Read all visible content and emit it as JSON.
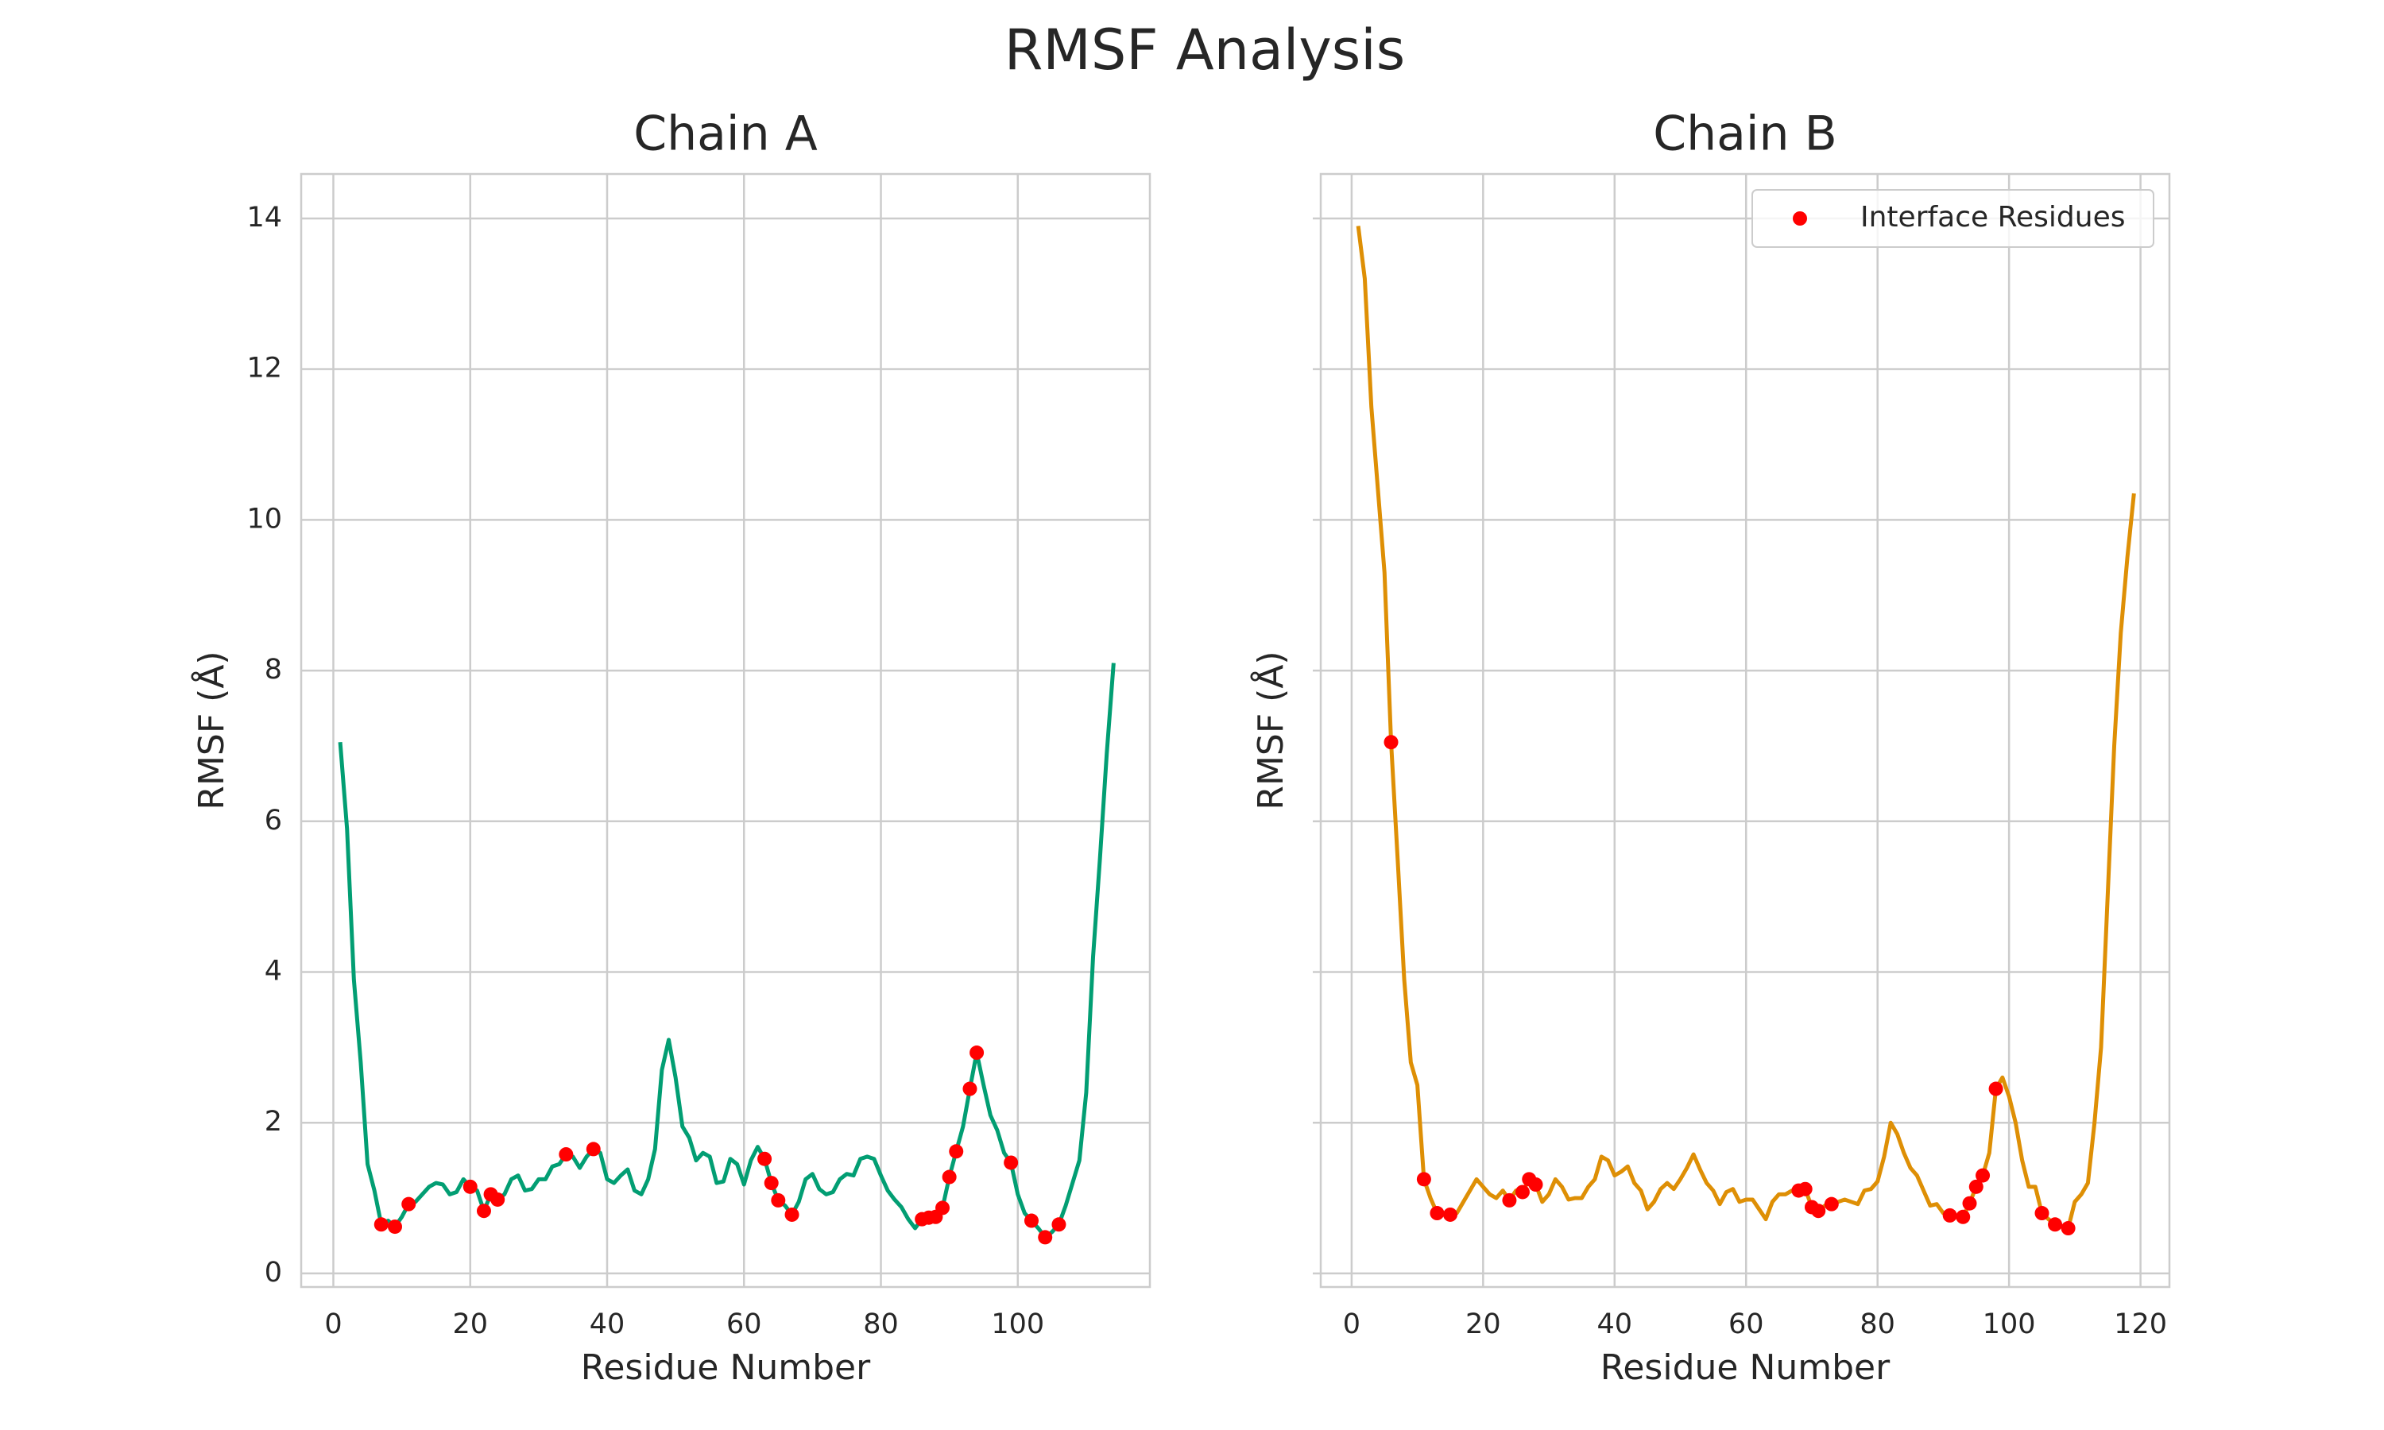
{
  "title": "RMSF Analysis",
  "chart_data": [
    {
      "type": "line",
      "title": "Chain A",
      "x_label": "Residue Number",
      "y_label": "RMSF (Å)",
      "xlim": [
        -4.7,
        119.3
      ],
      "ylim": [
        -0.18,
        14.59
      ],
      "xticks": [
        0,
        20,
        40,
        60,
        80,
        100
      ],
      "yticks": [
        0,
        2,
        4,
        6,
        8,
        10,
        12,
        14
      ],
      "grid": true,
      "show_ytick_labels": true,
      "x": [
        1,
        2,
        3,
        4,
        5,
        6,
        7,
        8,
        9,
        10,
        11,
        12,
        13,
        14,
        15,
        16,
        17,
        18,
        19,
        20,
        21,
        22,
        23,
        24,
        25,
        26,
        27,
        28,
        29,
        30,
        31,
        32,
        33,
        34,
        35,
        36,
        37,
        38,
        39,
        40,
        41,
        42,
        43,
        44,
        45,
        46,
        47,
        48,
        49,
        50,
        51,
        52,
        53,
        54,
        55,
        56,
        57,
        58,
        59,
        60,
        61,
        62,
        63,
        64,
        65,
        66,
        67,
        68,
        69,
        70,
        71,
        72,
        73,
        74,
        75,
        76,
        77,
        78,
        79,
        80,
        81,
        82,
        83,
        84,
        85,
        86,
        87,
        88,
        89,
        90,
        91,
        92,
        93,
        94,
        95,
        96,
        97,
        98,
        99,
        100,
        101,
        102,
        103,
        104,
        105,
        106,
        107,
        108,
        109,
        110,
        111,
        112,
        113,
        114
      ],
      "series": [
        {
          "color": "#029e73",
          "values": [
            7.05,
            5.9,
            3.9,
            2.8,
            1.45,
            1.1,
            0.65,
            0.7,
            0.62,
            0.75,
            0.92,
            0.95,
            1.05,
            1.15,
            1.2,
            1.18,
            1.05,
            1.08,
            1.25,
            1.15,
            1.1,
            0.83,
            1.05,
            0.98,
            1.05,
            1.25,
            1.3,
            1.1,
            1.12,
            1.25,
            1.25,
            1.42,
            1.45,
            1.58,
            1.55,
            1.4,
            1.55,
            1.65,
            1.6,
            1.25,
            1.2,
            1.3,
            1.38,
            1.1,
            1.05,
            1.25,
            1.65,
            2.7,
            3.1,
            2.6,
            1.95,
            1.8,
            1.5,
            1.6,
            1.55,
            1.2,
            1.22,
            1.52,
            1.45,
            1.18,
            1.5,
            1.68,
            1.52,
            1.2,
            0.97,
            0.9,
            0.78,
            0.95,
            1.25,
            1.32,
            1.12,
            1.05,
            1.08,
            1.25,
            1.32,
            1.3,
            1.52,
            1.55,
            1.52,
            1.3,
            1.1,
            0.98,
            0.88,
            0.72,
            0.6,
            0.72,
            0.74,
            0.75,
            0.87,
            1.28,
            1.62,
            1.95,
            2.45,
            2.93,
            2.5,
            2.1,
            1.9,
            1.6,
            1.47,
            1.05,
            0.8,
            0.7,
            0.6,
            0.48,
            0.55,
            0.65,
            0.9,
            1.2,
            1.5,
            2.4,
            4.2,
            5.5,
            6.9,
            8.1
          ]
        }
      ],
      "points": {
        "color": "red",
        "x": [
          7,
          9,
          11,
          20,
          22,
          23,
          24,
          34,
          38,
          63,
          64,
          65,
          67,
          86,
          87,
          88,
          89,
          90,
          91,
          93,
          94,
          99,
          102,
          104,
          106
        ],
        "values": [
          0.65,
          0.62,
          0.92,
          1.15,
          0.83,
          1.05,
          0.98,
          1.58,
          1.65,
          1.52,
          1.2,
          0.97,
          0.78,
          0.72,
          0.74,
          0.75,
          0.87,
          1.28,
          1.62,
          2.45,
          2.93,
          1.47,
          0.7,
          0.48,
          0.65
        ]
      }
    },
    {
      "type": "line",
      "title": "Chain B",
      "x_label": "Residue Number",
      "y_label": "RMSF (Å)",
      "xlim": [
        -4.7,
        124.4
      ],
      "ylim": [
        -0.18,
        14.59
      ],
      "xticks": [
        0,
        20,
        40,
        60,
        80,
        100,
        120
      ],
      "yticks": [
        0,
        2,
        4,
        6,
        8,
        10,
        12,
        14
      ],
      "grid": true,
      "show_ytick_labels": false,
      "legend": "upper right",
      "x": [
        1,
        2,
        3,
        4,
        5,
        6,
        7,
        8,
        9,
        10,
        11,
        12,
        13,
        14,
        15,
        16,
        17,
        18,
        19,
        20,
        21,
        22,
        23,
        24,
        25,
        26,
        27,
        28,
        29,
        30,
        31,
        32,
        33,
        34,
        35,
        36,
        37,
        38,
        39,
        40,
        41,
        42,
        43,
        44,
        45,
        46,
        47,
        48,
        49,
        50,
        51,
        52,
        53,
        54,
        55,
        56,
        57,
        58,
        59,
        60,
        61,
        62,
        63,
        64,
        65,
        66,
        67,
        68,
        69,
        70,
        71,
        72,
        73,
        74,
        75,
        76,
        77,
        78,
        79,
        80,
        81,
        82,
        83,
        84,
        85,
        86,
        87,
        88,
        89,
        90,
        91,
        92,
        93,
        94,
        95,
        96,
        97,
        98,
        99,
        100,
        101,
        102,
        103,
        104,
        105,
        106,
        107,
        108,
        109,
        110,
        111,
        112,
        113,
        114,
        115,
        116,
        117,
        118,
        119
      ],
      "series": [
        {
          "color": "#de8f05",
          "values": [
            13.9,
            13.2,
            11.5,
            10.4,
            9.3,
            7.05,
            5.5,
            3.9,
            2.8,
            2.5,
            1.25,
            1.0,
            0.8,
            0.78,
            0.78,
            0.8,
            0.95,
            1.1,
            1.25,
            1.15,
            1.05,
            1.0,
            1.1,
            0.97,
            1.1,
            1.08,
            1.25,
            1.18,
            0.95,
            1.05,
            1.25,
            1.15,
            0.98,
            1.0,
            1.0,
            1.15,
            1.25,
            1.55,
            1.5,
            1.3,
            1.35,
            1.42,
            1.2,
            1.1,
            0.85,
            0.95,
            1.12,
            1.2,
            1.12,
            1.25,
            1.4,
            1.58,
            1.38,
            1.2,
            1.1,
            0.92,
            1.08,
            1.12,
            0.95,
            0.98,
            0.98,
            0.85,
            0.72,
            0.95,
            1.05,
            1.05,
            1.1,
            1.1,
            1.12,
            0.88,
            0.83,
            0.9,
            0.92,
            0.95,
            0.98,
            0.95,
            0.92,
            1.1,
            1.12,
            1.22,
            1.55,
            2.0,
            1.85,
            1.6,
            1.4,
            1.3,
            1.1,
            0.9,
            0.92,
            0.8,
            0.77,
            0.75,
            0.75,
            0.93,
            1.15,
            1.3,
            1.6,
            2.45,
            2.6,
            2.35,
            2.0,
            1.5,
            1.15,
            1.15,
            0.8,
            0.72,
            0.65,
            0.62,
            0.6,
            0.95,
            1.05,
            1.2,
            2.0,
            3.0,
            5.0,
            7.0,
            8.5,
            9.5,
            10.35
          ]
        }
      ],
      "points": {
        "name": "Interface Residues",
        "color": "red",
        "x": [
          6,
          11,
          13,
          15,
          24,
          26,
          27,
          28,
          68,
          69,
          70,
          71,
          73,
          91,
          93,
          94,
          95,
          96,
          98,
          105,
          107,
          109
        ],
        "values": [
          7.05,
          1.25,
          0.8,
          0.78,
          0.97,
          1.08,
          1.25,
          1.18,
          1.1,
          1.12,
          0.88,
          0.83,
          0.92,
          0.77,
          0.75,
          0.93,
          1.15,
          1.3,
          2.45,
          0.8,
          0.65,
          0.6
        ]
      }
    }
  ]
}
